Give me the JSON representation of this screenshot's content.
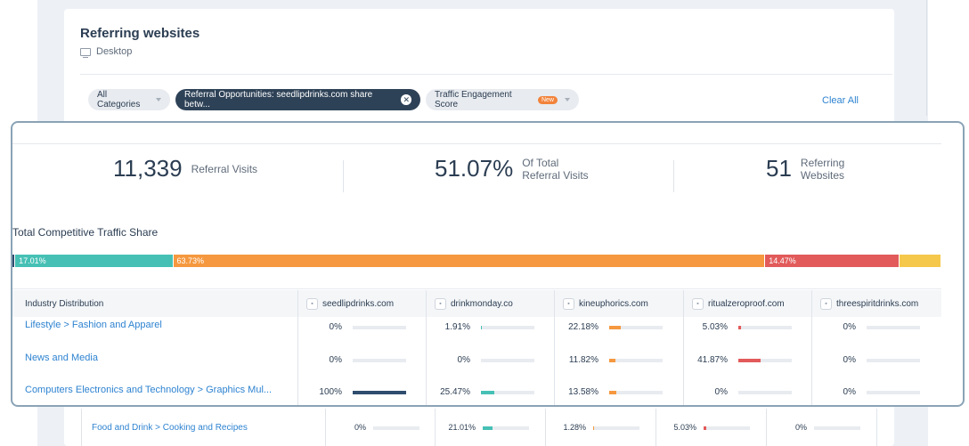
{
  "header": {
    "title": "Referring websites",
    "device": "Desktop"
  },
  "filters": {
    "all_categories": "All Categories",
    "referral": "Referral Opportunities: seedlipdrinks.com share betw...",
    "engagement": "Traffic Engagement Score",
    "new_badge": "New",
    "clear_all": "Clear All"
  },
  "metrics": {
    "visits_value": "11,339",
    "visits_label": "Referral Visits",
    "pct_value": "51.07%",
    "pct_label_1": "Of Total",
    "pct_label_2": "Referral Visits",
    "sites_value": "51",
    "sites_label_1": "Referring",
    "sites_label_2": "Websites"
  },
  "traffic_share": {
    "title": "Total Competitive Traffic Share",
    "segments": [
      {
        "label": "",
        "value": 0.3,
        "color": "#2f4d6e"
      },
      {
        "label": "17.01%",
        "value": 17.01,
        "color": "#46c0b5"
      },
      {
        "label": "63.73%",
        "value": 63.73,
        "color": "#f5983f"
      },
      {
        "label": "14.47%",
        "value": 14.47,
        "color": "#e25a5a"
      },
      {
        "label": "",
        "value": 4.49,
        "color": "#f5c84c"
      }
    ]
  },
  "table": {
    "industry_header": "Industry Distribution",
    "sites": [
      "seedlipdrinks.com",
      "drinkmonday.co",
      "kineuphorics.com",
      "ritualzeroproof.com",
      "threespiritdrinks.com"
    ],
    "rows": [
      {
        "name": "Lifestyle > Fashion and Apparel",
        "values": [
          "0%",
          "1.91%",
          "22.18%",
          "5.03%",
          "0%"
        ],
        "fills": [
          0,
          1.91,
          22.18,
          5.03,
          0
        ]
      },
      {
        "name": "News and Media",
        "values": [
          "0%",
          "0%",
          "11.82%",
          "41.87%",
          "0%"
        ],
        "fills": [
          0,
          0,
          11.82,
          41.87,
          0
        ]
      },
      {
        "name": "Computers Electronics and Technology > Graphics Mul...",
        "values": [
          "100%",
          "25.47%",
          "13.58%",
          "0%",
          "0%"
        ],
        "fills": [
          100,
          25.47,
          13.58,
          0,
          0
        ]
      }
    ],
    "below_row": {
      "name": "Food and Drink > Cooking and Recipes",
      "values": [
        "0%",
        "21.01%",
        "1.28%",
        "5.03%",
        "0%"
      ],
      "fills": [
        0,
        21.01,
        1.28,
        5.03,
        0
      ]
    }
  },
  "colors": {
    "site_colors": [
      "#2f4d6e",
      "#46c0b5",
      "#f5983f",
      "#e25a5a",
      "#f5c84c"
    ],
    "link": "#2e83d1"
  }
}
